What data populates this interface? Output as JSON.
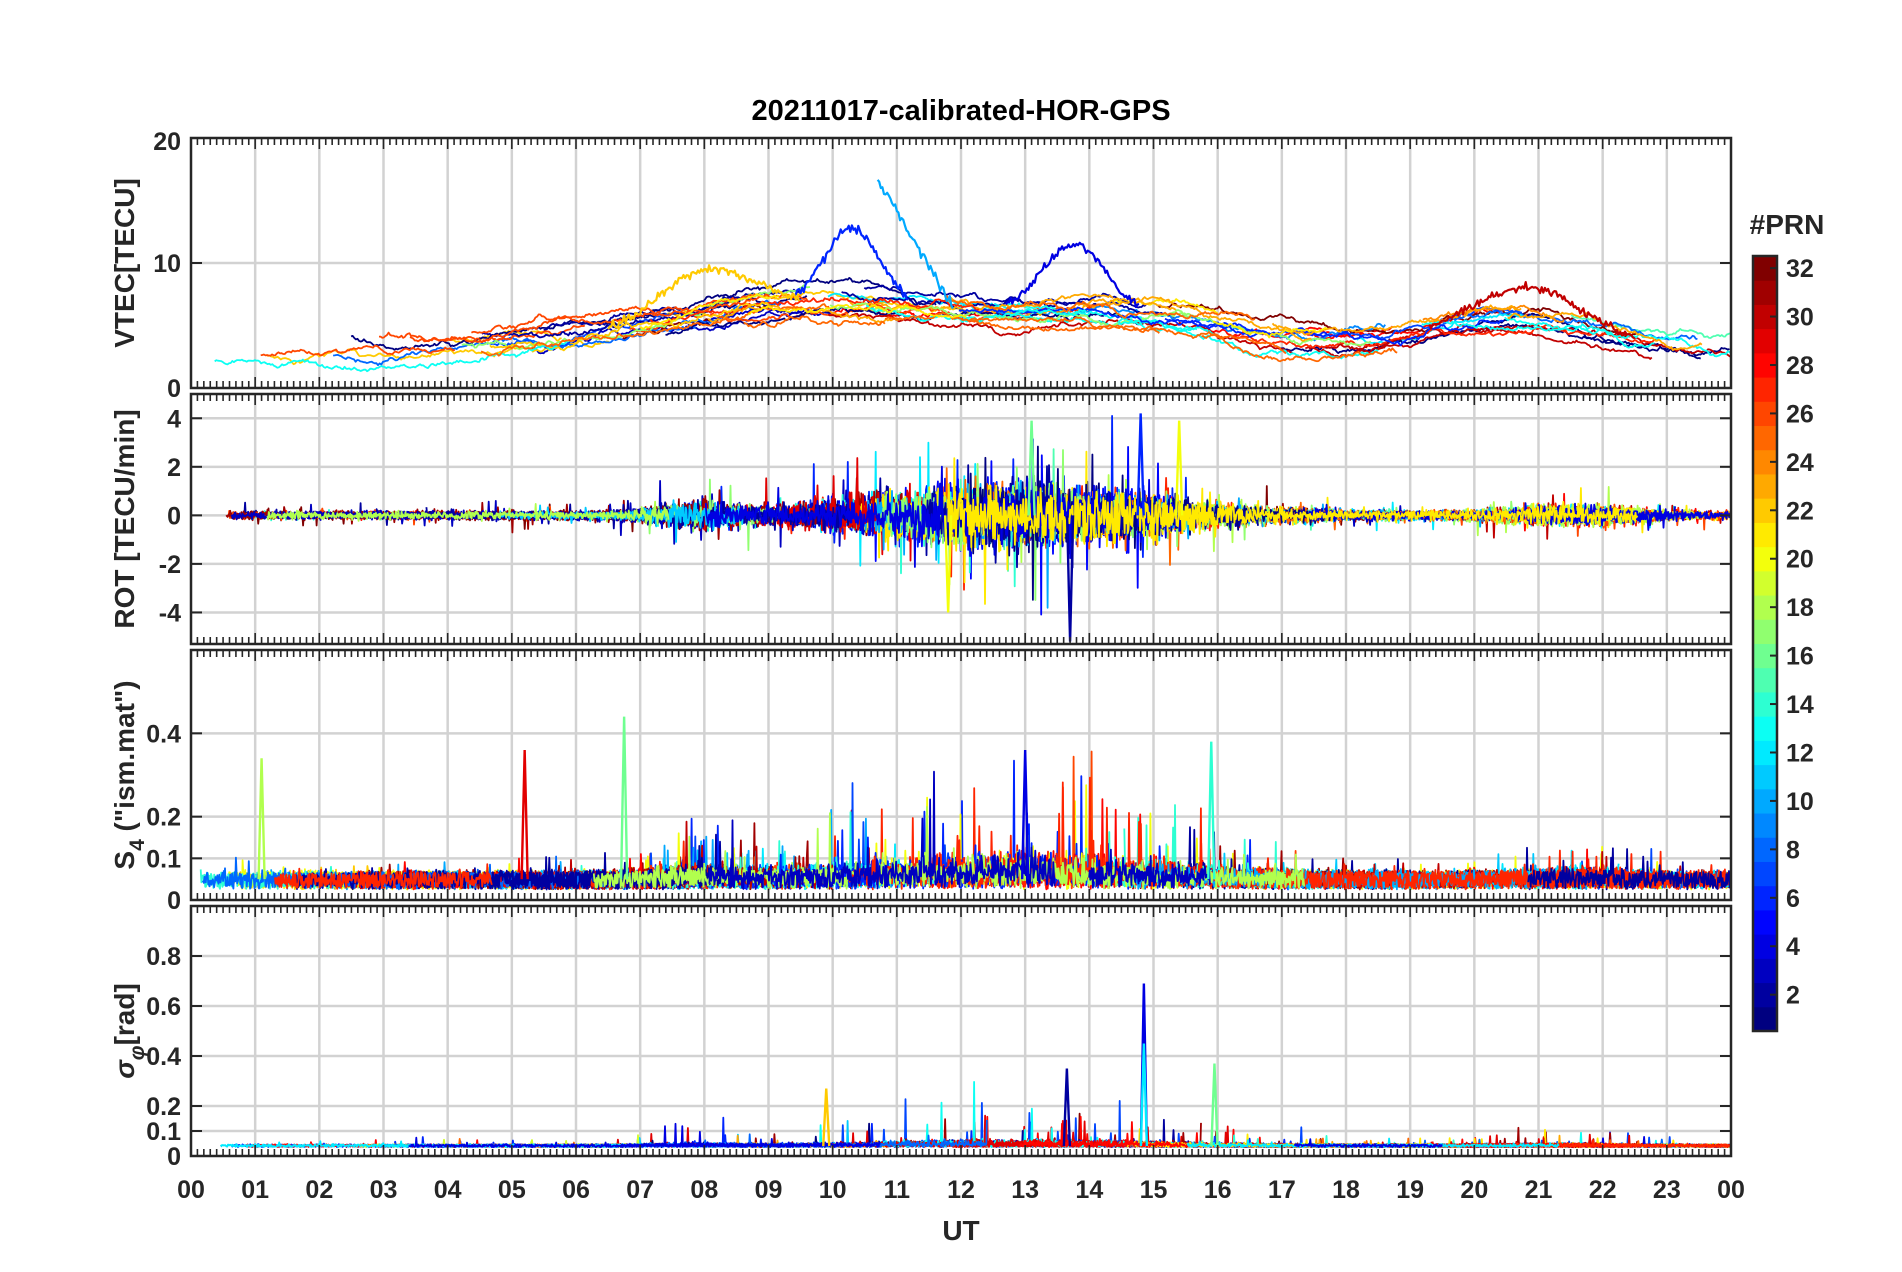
{
  "chart_data": {
    "type": "line",
    "title": "20211017-calibrated-HOR-GPS",
    "xlabel": "UT",
    "x_tick_labels": [
      "00",
      "01",
      "02",
      "03",
      "04",
      "05",
      "06",
      "07",
      "08",
      "09",
      "10",
      "11",
      "12",
      "13",
      "14",
      "15",
      "16",
      "17",
      "18",
      "19",
      "20",
      "21",
      "22",
      "23",
      "00"
    ],
    "xlim_hours": [
      0,
      24
    ],
    "colorbar": {
      "label": "#PRN",
      "range": [
        1,
        32
      ],
      "ticks": [
        2,
        4,
        6,
        8,
        10,
        12,
        14,
        16,
        18,
        20,
        22,
        24,
        26,
        28,
        30,
        32
      ],
      "colormap": "jet",
      "placement": "right"
    },
    "grid": true,
    "panels": [
      {
        "name": "vtec",
        "ylabel": "VTEC[TECU]",
        "ylim": [
          0,
          20
        ],
        "yticks": [
          0,
          10,
          20
        ],
        "features": [
          {
            "prn": 10,
            "start_h": 10.7,
            "end_h": 11.9,
            "peak": 16.5,
            "note": "high arc"
          },
          {
            "prn": 6,
            "start_h": 9.4,
            "end_h": 11.2,
            "peak": 12.8
          },
          {
            "prn": 4,
            "start_h": 12.7,
            "end_h": 14.8,
            "peak": 11.5
          },
          {
            "prn": 30,
            "start_h": 19.3,
            "end_h": 22.5,
            "peak": 8.0
          },
          {
            "prn": 22,
            "start_h": 6.5,
            "end_h": 9.5,
            "peak": 9.5
          }
        ]
      },
      {
        "name": "rot",
        "ylabel": "ROT [TECU/min]",
        "ylim": [
          -5.3,
          5
        ],
        "yticks": [
          -4,
          -2,
          0,
          2,
          4
        ],
        "features": [
          {
            "prn": 2,
            "time_h": 13.7,
            "value": -5.2
          },
          {
            "prn": 6,
            "time_h": 14.8,
            "value": 4.2
          },
          {
            "prn": 20,
            "time_h": 11.8,
            "value": -4.0
          },
          {
            "prn": 20,
            "time_h": 15.4,
            "value": 3.9
          },
          {
            "prn": 16,
            "time_h": 13.1,
            "value": 3.9
          }
        ]
      },
      {
        "name": "s4",
        "ylabel_main": "S",
        "ylabel_sub": "4",
        "ylabel_rest": " (\"ism.mat\")",
        "ylim": [
          0,
          0.6
        ],
        "yticks": [
          0,
          0.1,
          0.2,
          0.4
        ],
        "features": [
          {
            "prn": 16,
            "time_h": 6.75,
            "value": 0.44
          },
          {
            "prn": 14,
            "time_h": 15.9,
            "value": 0.38
          },
          {
            "prn": 29,
            "time_h": 5.2,
            "value": 0.36
          },
          {
            "prn": 4,
            "time_h": 13.0,
            "value": 0.36
          },
          {
            "prn": 18,
            "time_h": 1.1,
            "value": 0.34
          }
        ]
      },
      {
        "name": "sigma_phi",
        "ylabel_main": "σ",
        "ylabel_sub": "φ",
        "ylabel_rest": "[rad]",
        "ylim": [
          0,
          1
        ],
        "yticks": [
          0,
          0.1,
          0.2,
          0.4,
          0.6,
          0.8
        ],
        "features": [
          {
            "prn": 4,
            "time_h": 14.85,
            "value": 0.69
          },
          {
            "prn": 12,
            "time_h": 14.85,
            "value": 0.45
          },
          {
            "prn": 16,
            "time_h": 15.95,
            "value": 0.37
          },
          {
            "prn": 2,
            "time_h": 13.65,
            "value": 0.35
          },
          {
            "prn": 22,
            "time_h": 9.9,
            "value": 0.27
          }
        ]
      }
    ]
  }
}
